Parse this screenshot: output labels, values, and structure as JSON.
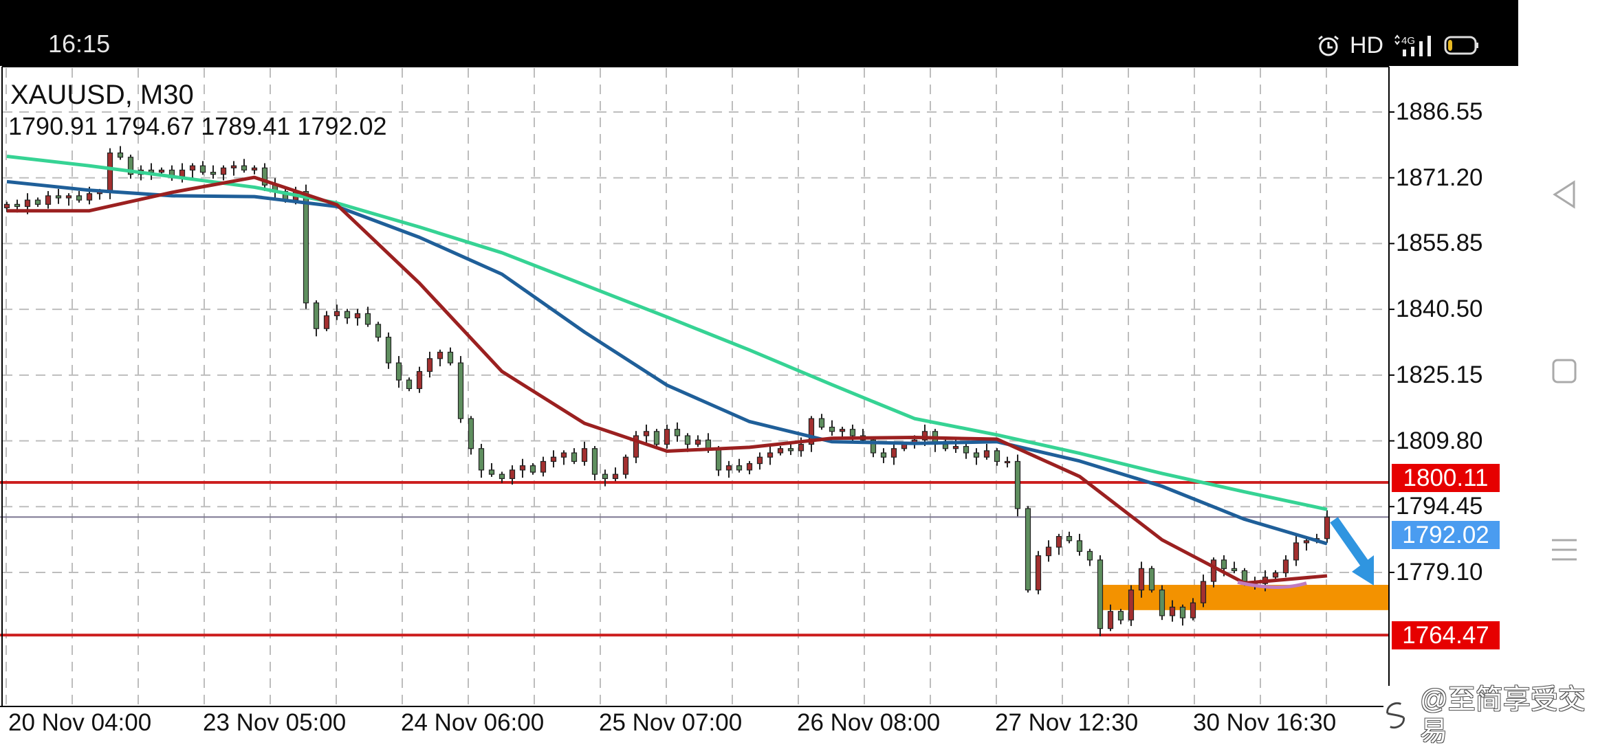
{
  "status_bar": {
    "time": "16:15",
    "hd_label": "HD",
    "network_label": "4G",
    "icons": [
      "alarm-icon",
      "hd-icon",
      "signal-4g-icon",
      "battery-icon"
    ],
    "battery_level": 0.15,
    "battery_color": "#e8b923"
  },
  "nav_bar": {
    "icons": [
      "back-triangle-icon",
      "home-square-icon",
      "menu-lines-icon"
    ]
  },
  "chart": {
    "symbol_title": "XAUUSD, M30",
    "ohlc": "1790.91 1794.67 1789.41 1792.02",
    "colors": {
      "bull": "#a33030",
      "bear": "#5f8f5f",
      "outline": "#222222",
      "grid": "#bdbdbd",
      "level_line": "#cc1f1f",
      "level_box": "#e60000",
      "current_line": "#7a7590",
      "current_box": "#4a9cf0",
      "zone": "#f39200",
      "arrow": "#2f95e0",
      "ma_green": "#36d394",
      "ma_blue": "#1f5f99",
      "ma_red": "#9b2020",
      "ma_red_highlight": "#c07cc0"
    }
  },
  "chart_data": {
    "type": "candlestick",
    "title": "XAUUSD, M30",
    "y_ticks": [
      "1886.55",
      "1871.20",
      "1855.85",
      "1840.50",
      "1825.15",
      "1809.80",
      "1794.45",
      "1779.10"
    ],
    "x_ticks": [
      "20 Nov 04:00",
      "23 Nov 05:00",
      "24 Nov 06:00",
      "25 Nov 07:00",
      "26 Nov 08:00",
      "27 Nov 12:30",
      "30 Nov 16:30"
    ],
    "ylim": [
      1750,
      1890
    ],
    "grid": true,
    "closes": [
      1865,
      1864.5,
      1866,
      1865,
      1867,
      1866.5,
      1867,
      1866,
      1867.5,
      1868,
      1877,
      1876,
      1872,
      1873,
      1872.5,
      1873,
      1871.5,
      1873,
      1874,
      1872.5,
      1872,
      1873.5,
      1874,
      1873,
      1873.5,
      1869.5,
      1868,
      1866,
      1868,
      1842,
      1836,
      1839,
      1840,
      1838.5,
      1839.5,
      1837,
      1834,
      1828,
      1824,
      1822,
      1826,
      1829,
      1830.5,
      1828,
      1815,
      1808,
      1803,
      1802,
      1801,
      1803,
      1804,
      1802.5,
      1805,
      1806,
      1807,
      1805,
      1808,
      1802,
      1801,
      1802,
      1806,
      1811,
      1812,
      1809,
      1812.5,
      1811,
      1809,
      1810,
      1808,
      1803,
      1804,
      1803,
      1804.5,
      1806,
      1807,
      1808,
      1807.5,
      1809,
      1815,
      1813,
      1812,
      1812.5,
      1811,
      1810,
      1807,
      1806,
      1808,
      1809,
      1810,
      1812,
      1809,
      1808,
      1808.5,
      1807,
      1806,
      1807.5,
      1805,
      1805,
      1794,
      1775,
      1783,
      1785,
      1787.5,
      1786.5,
      1784,
      1782,
      1766,
      1770,
      1768,
      1775,
      1780,
      1775,
      1769,
      1771,
      1768.5,
      1772,
      1777,
      1782,
      1780,
      1779.5,
      1777,
      1776.5,
      1778,
      1779,
      1782,
      1786,
      1786.5,
      1787,
      1792.02
    ],
    "moving_averages": [
      {
        "color": "#36d394",
        "values": [
          1876.2,
          1874,
          1871.5,
          1869,
          1865.3,
          1859.7,
          1853.7,
          1846.2,
          1838.7,
          1831,
          1822.9,
          1815,
          1811.2,
          1806.9,
          1802.2,
          1797.9,
          1793.8
        ]
      },
      {
        "color": "#1f5f99",
        "values": [
          1870.3,
          1868.3,
          1867,
          1866.8,
          1864.5,
          1857.3,
          1848.7,
          1835.2,
          1822.8,
          1814.3,
          1809.6,
          1809.2,
          1809.6,
          1805.1,
          1799.2,
          1791.5,
          1785.8
        ]
      },
      {
        "color": "#9b2020",
        "values": [
          1863.5,
          1863.5,
          1867.8,
          1871.3,
          1864.9,
          1846.6,
          1826,
          1813.9,
          1807.4,
          1808.3,
          1810.4,
          1810.6,
          1810.2,
          1801.5,
          1786.7,
          1776.6,
          1778.3
        ]
      }
    ],
    "levels": [
      {
        "price": 1800.11,
        "label": "1800.11"
      },
      {
        "price": 1764.47,
        "label": "1764.47"
      }
    ],
    "current_price": {
      "price": 1792.02,
      "label": "1792.02"
    },
    "zone": {
      "low": 1770.3,
      "high": 1776.2
    },
    "arrow": {
      "direction": "down",
      "from_price": 1792.02,
      "to_price": 1777
    }
  },
  "watermark": {
    "text": "@至简享受交易",
    "icon": "weibo-icon"
  }
}
